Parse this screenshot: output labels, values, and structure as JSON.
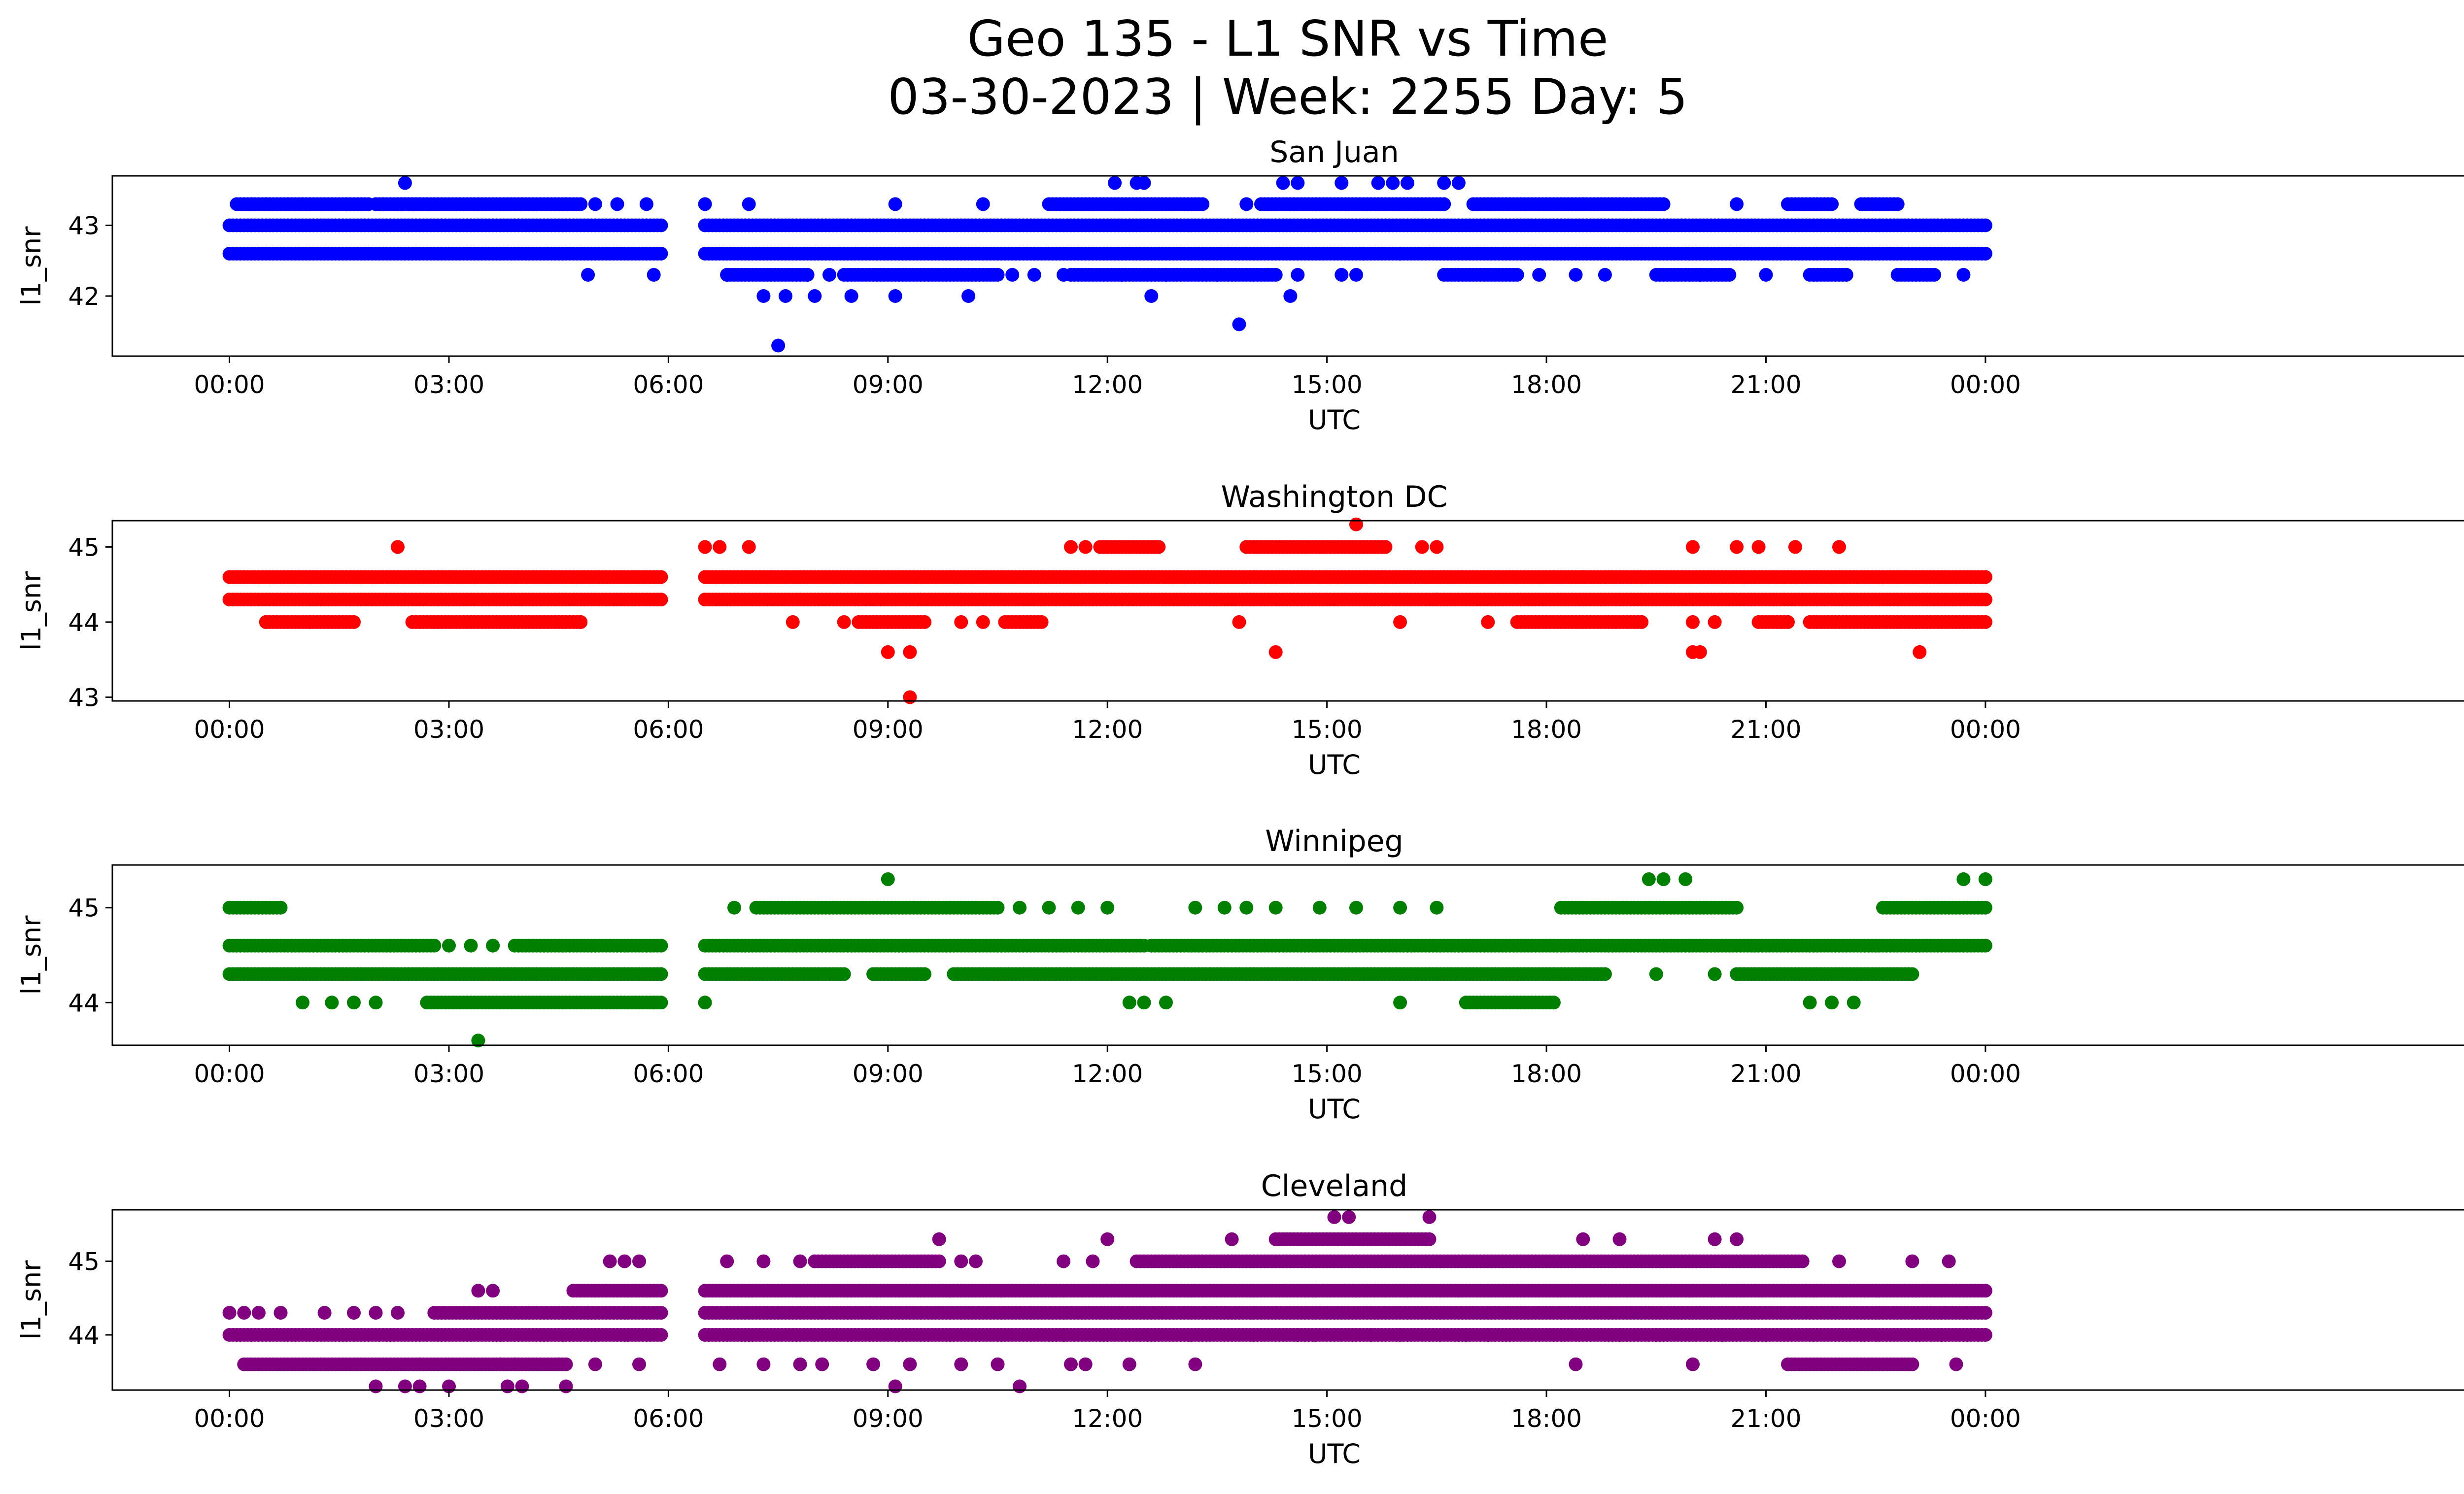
{
  "title_line1": "Geo 135 - L1 SNR vs Time",
  "title_line2": "03-30-2023 | Week: 2255 Day: 5",
  "chart_data": [
    {
      "type": "scatter",
      "title": "San Juan",
      "color": "#0000ff",
      "xlabel": "UTC",
      "ylabel": "l1_snr",
      "xlim": [
        -1.6,
        31.8
      ],
      "x_tick_values": [
        0,
        3,
        6,
        9,
        12,
        15,
        18,
        21,
        24
      ],
      "x_tick_labels": [
        "00:00",
        "03:00",
        "06:00",
        "09:00",
        "12:00",
        "15:00",
        "18:00",
        "21:00",
        "00:00"
      ],
      "ylim": [
        41.15,
        43.7
      ],
      "y_ticks": [
        42,
        43
      ],
      "bands": [
        {
          "y": 43.0,
          "spans": [
            [
              0.0,
              5.9
            ],
            [
              6.5,
              24.0
            ]
          ]
        },
        {
          "y": 42.6,
          "spans": [
            [
              0.0,
              5.9
            ],
            [
              6.5,
              24.0
            ]
          ]
        },
        {
          "y": 43.3,
          "spans": [
            [
              0.1,
              1.0
            ],
            [
              1.0,
              1.9
            ],
            [
              2.0,
              2.6
            ],
            [
              2.3,
              4.8
            ],
            [
              11.2,
              13.3
            ],
            [
              14.1,
              16.6
            ],
            [
              17.0,
              18.5
            ],
            [
              18.5,
              19.6
            ],
            [
              21.3,
              21.9
            ],
            [
              22.3,
              22.8
            ]
          ]
        },
        {
          "y": 42.3,
          "spans": [
            [
              6.8,
              7.9
            ],
            [
              8.4,
              10.5
            ],
            [
              11.5,
              14.3
            ],
            [
              16.6,
              17.6
            ],
            [
              19.5,
              20.5
            ],
            [
              21.6,
              22.1
            ],
            [
              22.8,
              23.3
            ]
          ]
        }
      ],
      "points": [
        [
          0.3,
          43.3
        ],
        [
          0.5,
          43.3
        ],
        [
          0.8,
          43.3
        ],
        [
          1.6,
          43.3
        ],
        [
          2.1,
          43.3
        ],
        [
          2.7,
          43.3
        ],
        [
          4.0,
          43.3
        ],
        [
          4.6,
          43.3
        ],
        [
          5.0,
          43.3
        ],
        [
          5.3,
          43.3
        ],
        [
          5.7,
          43.3
        ],
        [
          6.5,
          43.3
        ],
        [
          7.1,
          43.3
        ],
        [
          9.1,
          43.3
        ],
        [
          10.3,
          43.3
        ],
        [
          13.9,
          43.3
        ],
        [
          20.6,
          43.3
        ],
        [
          2.4,
          43.6
        ],
        [
          12.1,
          43.6
        ],
        [
          12.4,
          43.6
        ],
        [
          12.5,
          43.6
        ],
        [
          14.4,
          43.6
        ],
        [
          14.6,
          43.6
        ],
        [
          15.2,
          43.6
        ],
        [
          15.7,
          43.6
        ],
        [
          15.9,
          43.6
        ],
        [
          16.1,
          43.6
        ],
        [
          16.6,
          43.6
        ],
        [
          16.8,
          43.6
        ],
        [
          4.9,
          42.3
        ],
        [
          5.8,
          42.3
        ],
        [
          6.8,
          42.3
        ],
        [
          7.9,
          42.3
        ],
        [
          8.2,
          42.3
        ],
        [
          10.7,
          42.3
        ],
        [
          11.0,
          42.3
        ],
        [
          11.4,
          42.3
        ],
        [
          12.2,
          42.3
        ],
        [
          12.8,
          42.3
        ],
        [
          13.5,
          42.3
        ],
        [
          14.6,
          42.3
        ],
        [
          15.2,
          42.3
        ],
        [
          15.4,
          42.3
        ],
        [
          17.9,
          42.3
        ],
        [
          18.4,
          42.3
        ],
        [
          18.8,
          42.3
        ],
        [
          20.1,
          42.3
        ],
        [
          21.0,
          42.3
        ],
        [
          23.7,
          42.3
        ],
        [
          7.3,
          42.0
        ],
        [
          7.6,
          42.0
        ],
        [
          8.0,
          42.0
        ],
        [
          8.5,
          42.0
        ],
        [
          9.1,
          42.0
        ],
        [
          10.1,
          42.0
        ],
        [
          12.6,
          42.0
        ],
        [
          14.5,
          42.0
        ],
        [
          7.5,
          41.3
        ],
        [
          13.8,
          41.6
        ],
        [
          15.5,
          42.6
        ],
        [
          16.0,
          42.6
        ]
      ]
    },
    {
      "type": "scatter",
      "title": "Washington DC",
      "color": "#ff0000",
      "xlabel": "UTC",
      "ylabel": "l1_snr",
      "xlim": [
        -1.6,
        31.8
      ],
      "x_tick_values": [
        0,
        3,
        6,
        9,
        12,
        15,
        18,
        21,
        24
      ],
      "x_tick_labels": [
        "00:00",
        "03:00",
        "06:00",
        "09:00",
        "12:00",
        "15:00",
        "18:00",
        "21:00",
        "00:00"
      ],
      "ylim": [
        42.95,
        45.35
      ],
      "y_ticks": [
        43,
        44,
        45
      ],
      "bands": [
        {
          "y": 44.6,
          "spans": [
            [
              0.0,
              5.9
            ],
            [
              6.5,
              24.0
            ]
          ]
        },
        {
          "y": 44.3,
          "spans": [
            [
              0.0,
              5.9
            ],
            [
              6.5,
              24.0
            ]
          ]
        },
        {
          "y": 44.0,
          "spans": [
            [
              0.5,
              1.7
            ],
            [
              2.5,
              4.8
            ],
            [
              8.6,
              9.5
            ],
            [
              10.6,
              11.1
            ],
            [
              17.6,
              19.3
            ],
            [
              20.9,
              21.3
            ],
            [
              21.6,
              24.0
            ]
          ]
        },
        {
          "y": 45.0,
          "spans": [
            [
              11.9,
              12.7
            ],
            [
              13.9,
              15.8
            ]
          ]
        }
      ],
      "points": [
        [
          0.5,
          44.0
        ],
        [
          1.1,
          44.0
        ],
        [
          2.8,
          44.0
        ],
        [
          4.8,
          44.0
        ],
        [
          7.7,
          44.0
        ],
        [
          8.4,
          44.0
        ],
        [
          10.0,
          44.0
        ],
        [
          10.3,
          44.0
        ],
        [
          13.8,
          44.0
        ],
        [
          16.0,
          44.0
        ],
        [
          17.2,
          44.0
        ],
        [
          20.0,
          44.0
        ],
        [
          20.3,
          44.0
        ],
        [
          2.3,
          45.0
        ],
        [
          6.5,
          45.0
        ],
        [
          6.7,
          45.0
        ],
        [
          7.1,
          45.0
        ],
        [
          11.5,
          45.0
        ],
        [
          11.7,
          45.0
        ],
        [
          16.3,
          45.0
        ],
        [
          16.5,
          45.0
        ],
        [
          20.0,
          45.0
        ],
        [
          20.6,
          45.0
        ],
        [
          20.9,
          45.0
        ],
        [
          21.4,
          45.0
        ],
        [
          22.0,
          45.0
        ],
        [
          15.4,
          45.3
        ],
        [
          9.0,
          43.6
        ],
        [
          9.3,
          43.6
        ],
        [
          14.3,
          43.6
        ],
        [
          20.0,
          43.6
        ],
        [
          20.1,
          43.6
        ],
        [
          23.1,
          43.6
        ],
        [
          9.3,
          43.0
        ],
        [
          18.1,
          44.6
        ],
        [
          18.5,
          44.6
        ],
        [
          22.2,
          44.6
        ],
        [
          22.8,
          44.6
        ],
        [
          16.5,
          44.3
        ]
      ]
    },
    {
      "type": "scatter",
      "title": "Winnipeg",
      "color": "#008000",
      "xlabel": "UTC",
      "ylabel": "l1_snr",
      "xlim": [
        -1.6,
        31.8
      ],
      "x_tick_values": [
        0,
        3,
        6,
        9,
        12,
        15,
        18,
        21,
        24
      ],
      "x_tick_labels": [
        "00:00",
        "03:00",
        "06:00",
        "09:00",
        "12:00",
        "15:00",
        "18:00",
        "21:00",
        "00:00"
      ],
      "ylim": [
        43.55,
        45.45
      ],
      "y_ticks": [
        44,
        45
      ],
      "bands": [
        {
          "y": 44.6,
          "spans": [
            [
              0.0,
              2.8
            ],
            [
              3.9,
              5.9
            ],
            [
              6.5,
              12.5
            ],
            [
              12.6,
              24.0
            ]
          ]
        },
        {
          "y": 44.3,
          "spans": [
            [
              0.0,
              5.9
            ],
            [
              6.5,
              8.4
            ],
            [
              8.8,
              9.5
            ],
            [
              9.9,
              18.8
            ],
            [
              20.6,
              23.0
            ]
          ]
        },
        {
          "y": 45.0,
          "spans": [
            [
              0.0,
              0.7
            ],
            [
              7.2,
              10.5
            ],
            [
              18.2,
              20.6
            ],
            [
              22.6,
              24.0
            ]
          ]
        },
        {
          "y": 44.0,
          "spans": [
            [
              2.7,
              5.9
            ],
            [
              16.9,
              18.1
            ]
          ]
        }
      ],
      "points": [
        [
          1.0,
          44.0
        ],
        [
          1.4,
          44.0
        ],
        [
          1.7,
          44.0
        ],
        [
          2.0,
          44.0
        ],
        [
          5.8,
          44.0
        ],
        [
          6.5,
          44.0
        ],
        [
          12.3,
          44.0
        ],
        [
          12.5,
          44.0
        ],
        [
          12.8,
          44.0
        ],
        [
          16.0,
          44.0
        ],
        [
          21.6,
          44.0
        ],
        [
          21.9,
          44.0
        ],
        [
          22.2,
          44.0
        ],
        [
          3.4,
          43.6
        ],
        [
          9.0,
          45.3
        ],
        [
          19.4,
          45.3
        ],
        [
          19.6,
          45.3
        ],
        [
          19.9,
          45.3
        ],
        [
          23.7,
          45.3
        ],
        [
          24.0,
          45.3
        ],
        [
          6.9,
          45.0
        ],
        [
          10.8,
          45.0
        ],
        [
          11.2,
          45.0
        ],
        [
          11.6,
          45.0
        ],
        [
          12.0,
          45.0
        ],
        [
          13.2,
          45.0
        ],
        [
          13.6,
          45.0
        ],
        [
          13.9,
          45.0
        ],
        [
          14.3,
          45.0
        ],
        [
          14.9,
          45.0
        ],
        [
          15.4,
          45.0
        ],
        [
          16.0,
          45.0
        ],
        [
          16.5,
          45.0
        ],
        [
          19.5,
          44.3
        ],
        [
          20.3,
          44.3
        ],
        [
          3.0,
          44.6
        ],
        [
          3.3,
          44.6
        ],
        [
          3.6,
          44.6
        ]
      ]
    },
    {
      "type": "scatter",
      "title": "Cleveland",
      "color": "#800080",
      "xlabel": "UTC",
      "ylabel": "l1_snr",
      "xlim": [
        -1.6,
        31.8
      ],
      "x_tick_values": [
        0,
        3,
        6,
        9,
        12,
        15,
        18,
        21,
        24
      ],
      "x_tick_labels": [
        "00:00",
        "03:00",
        "06:00",
        "09:00",
        "12:00",
        "15:00",
        "18:00",
        "21:00",
        "00:00"
      ],
      "ylim": [
        43.25,
        45.7
      ],
      "y_ticks": [
        44,
        45
      ],
      "bands": [
        {
          "y": 44.0,
          "spans": [
            [
              0.0,
              5.9
            ],
            [
              6.5,
              24.0
            ]
          ]
        },
        {
          "y": 44.3,
          "spans": [
            [
              2.8,
              5.9
            ],
            [
              6.5,
              24.0
            ]
          ]
        },
        {
          "y": 44.6,
          "spans": [
            [
              4.7,
              5.9
            ],
            [
              6.5,
              24.0
            ]
          ]
        },
        {
          "y": 43.6,
          "spans": [
            [
              0.2,
              2.6
            ],
            [
              2.6,
              4.6
            ],
            [
              21.3,
              23.0
            ]
          ]
        },
        {
          "y": 45.0,
          "spans": [
            [
              8.0,
              9.7
            ],
            [
              12.4,
              21.5
            ]
          ]
        },
        {
          "y": 45.3,
          "spans": [
            [
              14.3,
              16.4
            ]
          ]
        }
      ],
      "points": [
        [
          0.0,
          44.3
        ],
        [
          0.2,
          44.3
        ],
        [
          0.4,
          44.3
        ],
        [
          0.7,
          44.3
        ],
        [
          1.3,
          44.3
        ],
        [
          1.7,
          44.3
        ],
        [
          2.0,
          44.3
        ],
        [
          2.3,
          44.3
        ],
        [
          4.9,
          44.3
        ],
        [
          3.4,
          44.6
        ],
        [
          3.6,
          44.6
        ],
        [
          5.2,
          45.0
        ],
        [
          5.4,
          45.0
        ],
        [
          5.6,
          45.0
        ],
        [
          6.8,
          45.0
        ],
        [
          7.3,
          45.0
        ],
        [
          7.8,
          45.0
        ],
        [
          10.0,
          45.0
        ],
        [
          10.2,
          45.0
        ],
        [
          11.4,
          45.0
        ],
        [
          11.8,
          45.0
        ],
        [
          9.7,
          45.3
        ],
        [
          12.0,
          45.3
        ],
        [
          13.7,
          45.3
        ],
        [
          22.0,
          45.0
        ],
        [
          23.0,
          45.0
        ],
        [
          23.5,
          45.0
        ],
        [
          18.5,
          45.3
        ],
        [
          19.0,
          45.3
        ],
        [
          20.3,
          45.3
        ],
        [
          20.6,
          45.3
        ],
        [
          15.1,
          45.6
        ],
        [
          15.3,
          45.6
        ],
        [
          16.4,
          45.6
        ],
        [
          6.7,
          43.6
        ],
        [
          7.3,
          43.6
        ],
        [
          7.8,
          43.6
        ],
        [
          8.1,
          43.6
        ],
        [
          8.8,
          43.6
        ],
        [
          9.3,
          43.6
        ],
        [
          10.0,
          43.6
        ],
        [
          10.5,
          43.6
        ],
        [
          11.5,
          43.6
        ],
        [
          11.7,
          43.6
        ],
        [
          12.3,
          43.6
        ],
        [
          13.2,
          43.6
        ],
        [
          18.4,
          43.6
        ],
        [
          20.0,
          43.6
        ],
        [
          23.6,
          43.6
        ],
        [
          2.0,
          43.3
        ],
        [
          2.4,
          43.3
        ],
        [
          2.6,
          43.3
        ],
        [
          3.0,
          43.3
        ],
        [
          3.8,
          43.3
        ],
        [
          4.0,
          43.3
        ],
        [
          4.6,
          43.3
        ],
        [
          9.1,
          43.3
        ],
        [
          10.8,
          43.3
        ],
        [
          3.7,
          43.6
        ],
        [
          3.9,
          43.6
        ],
        [
          4.5,
          43.6
        ],
        [
          5.0,
          43.6
        ],
        [
          5.6,
          43.6
        ],
        [
          11.4,
          44.0
        ],
        [
          14.6,
          44.0
        ],
        [
          15.6,
          44.0
        ],
        [
          16.0,
          44.0
        ],
        [
          16.9,
          44.0
        ],
        [
          17.2,
          44.0
        ],
        [
          19.0,
          44.0
        ],
        [
          19.5,
          44.0
        ],
        [
          20.4,
          44.0
        ],
        [
          21.0,
          44.0
        ],
        [
          23.4,
          44.0
        ]
      ]
    }
  ]
}
